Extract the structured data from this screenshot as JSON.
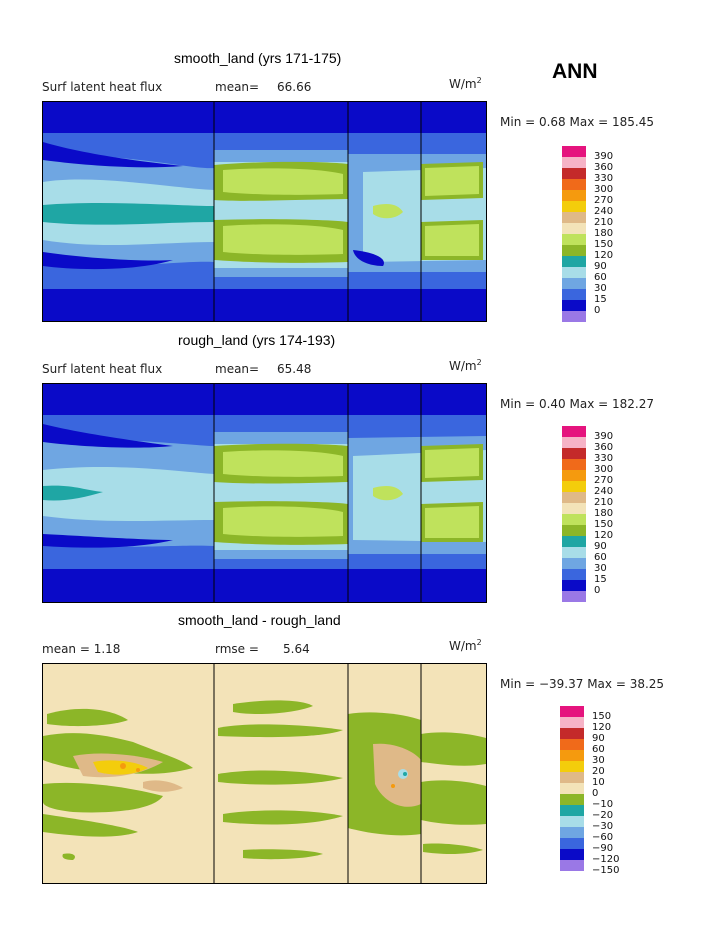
{
  "season": "ANN",
  "panels": [
    {
      "title": "smooth_land (yrs 171-175)",
      "left_label": "Surf latent heat flux",
      "mid_label": "mean=",
      "mid_value": "66.66",
      "units": "W/m",
      "units_exp": "2",
      "minmax": "Min =   0.68 Max = 185.45",
      "colorbar": [
        "390",
        "360",
        "330",
        "300",
        "270",
        "240",
        "210",
        "180",
        "150",
        "120",
        "90",
        "60",
        "30",
        "15",
        "0"
      ]
    },
    {
      "title": "rough_land (yrs 174-193)",
      "left_label": "Surf latent heat flux",
      "mid_label": "mean=",
      "mid_value": "65.48",
      "units": "W/m",
      "units_exp": "2",
      "minmax": "Min =   0.40 Max = 182.27",
      "colorbar": [
        "390",
        "360",
        "330",
        "300",
        "270",
        "240",
        "210",
        "180",
        "150",
        "120",
        "90",
        "60",
        "30",
        "15",
        "0"
      ]
    },
    {
      "title": "smooth_land - rough_land",
      "left_label": "mean =   1.18",
      "mid_label": "rmse =",
      "mid_value": "5.64",
      "units": "W/m",
      "units_exp": "2",
      "minmax": "Min = −39.37 Max =  38.25",
      "colorbar": [
        "150",
        "120",
        "90",
        "60",
        "30",
        "20",
        "10",
        "0",
        "−10",
        "−20",
        "−30",
        "−60",
        "−90",
        "−120",
        "−150"
      ]
    }
  ],
  "colors": {
    "field_scale": [
      "#e5147e",
      "#f6b3c6",
      "#c42a2a",
      "#f06a1a",
      "#f59a0e",
      "#f3cd0c",
      "#dfb988",
      "#f3e3b8",
      "#bfe25c",
      "#8cb628",
      "#1fa6a4",
      "#a8dde8",
      "#6fa6e2",
      "#3a66de",
      "#0a0ac8",
      "#9a78e6"
    ],
    "diff_scale": [
      "#e5147e",
      "#f6b3c6",
      "#c42a2a",
      "#f06a1a",
      "#f59a0e",
      "#f3cd0c",
      "#dfb988",
      "#f3e3b8",
      "#8cb628",
      "#1fa6a4",
      "#a8dde8",
      "#6fa6e2",
      "#3a66de",
      "#0a0ac8",
      "#9a78e6"
    ]
  },
  "chart_data": [
    {
      "type": "heatmap",
      "title": "smooth_land (yrs 171-175)",
      "variable": "Surf latent heat flux",
      "units": "W/m2",
      "mean": 66.66,
      "min": 0.68,
      "max": 185.45,
      "contour_levels": [
        0,
        15,
        30,
        60,
        90,
        120,
        150,
        180,
        210,
        240,
        270,
        300,
        330,
        360,
        390
      ]
    },
    {
      "type": "heatmap",
      "title": "rough_land (yrs 174-193)",
      "variable": "Surf latent heat flux",
      "units": "W/m2",
      "mean": 65.48,
      "min": 0.4,
      "max": 182.27,
      "contour_levels": [
        0,
        15,
        30,
        60,
        90,
        120,
        150,
        180,
        210,
        240,
        270,
        300,
        330,
        360,
        390
      ]
    },
    {
      "type": "heatmap",
      "title": "smooth_land - rough_land",
      "units": "W/m2",
      "mean": 1.18,
      "rmse": 5.64,
      "min": -39.37,
      "max": 38.25,
      "contour_levels": [
        -150,
        -120,
        -90,
        -60,
        -30,
        -20,
        -10,
        0,
        10,
        20,
        30,
        60,
        90,
        120,
        150
      ]
    }
  ]
}
